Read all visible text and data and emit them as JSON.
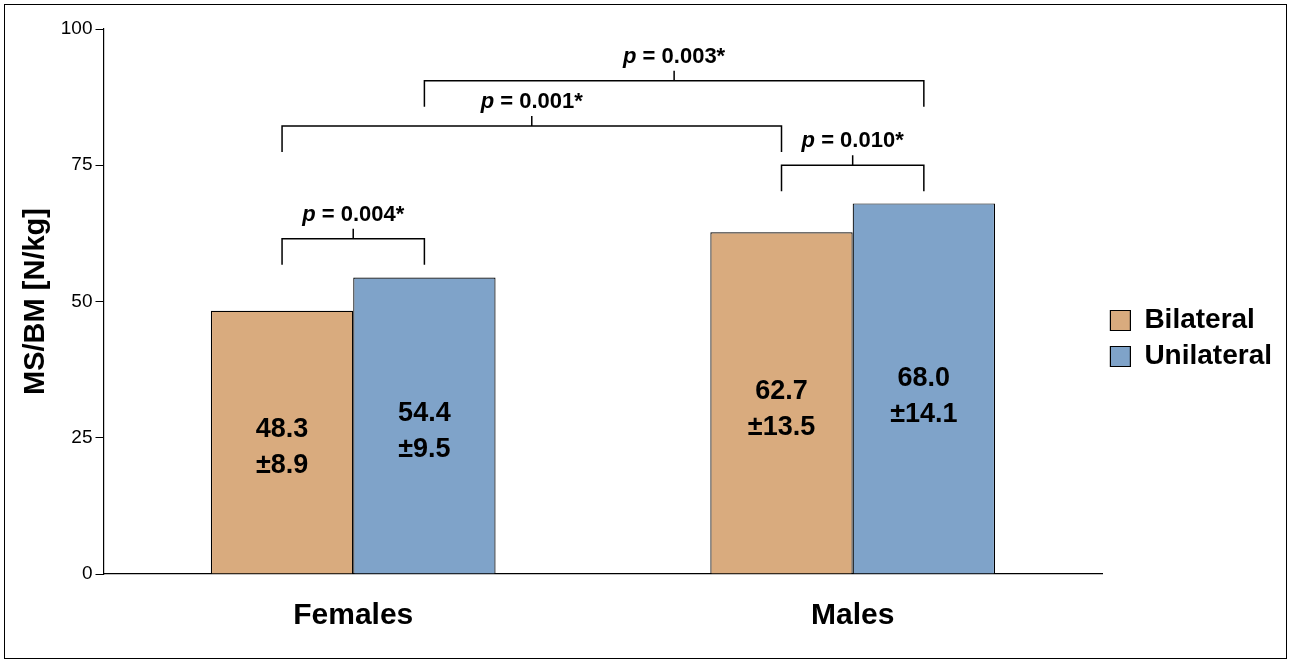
{
  "chart_data": {
    "type": "bar",
    "ylabel": "MS/BM [N/kg]",
    "categories": [
      "Females",
      "Males"
    ],
    "series": [
      {
        "name": "Bilateral",
        "color": "#d9ab7e",
        "values": [
          48.3,
          62.7
        ],
        "value_labels": [
          "48.3 ±8.9",
          "62.7 ±13.5"
        ]
      },
      {
        "name": "Unilateral",
        "color": "#7fa3c9",
        "values": [
          54.4,
          68.0
        ],
        "value_labels": [
          "54.4 ±9.5",
          "68.0 ±14.1"
        ]
      }
    ],
    "ylim": [
      0,
      100
    ],
    "yticks": [
      0,
      25,
      50,
      75,
      100
    ],
    "grid": false,
    "legend": "right",
    "annotations": [
      "p = 0.004*",
      "p = 0.010*",
      "p = 0.001*",
      "p = 0.003*"
    ]
  }
}
